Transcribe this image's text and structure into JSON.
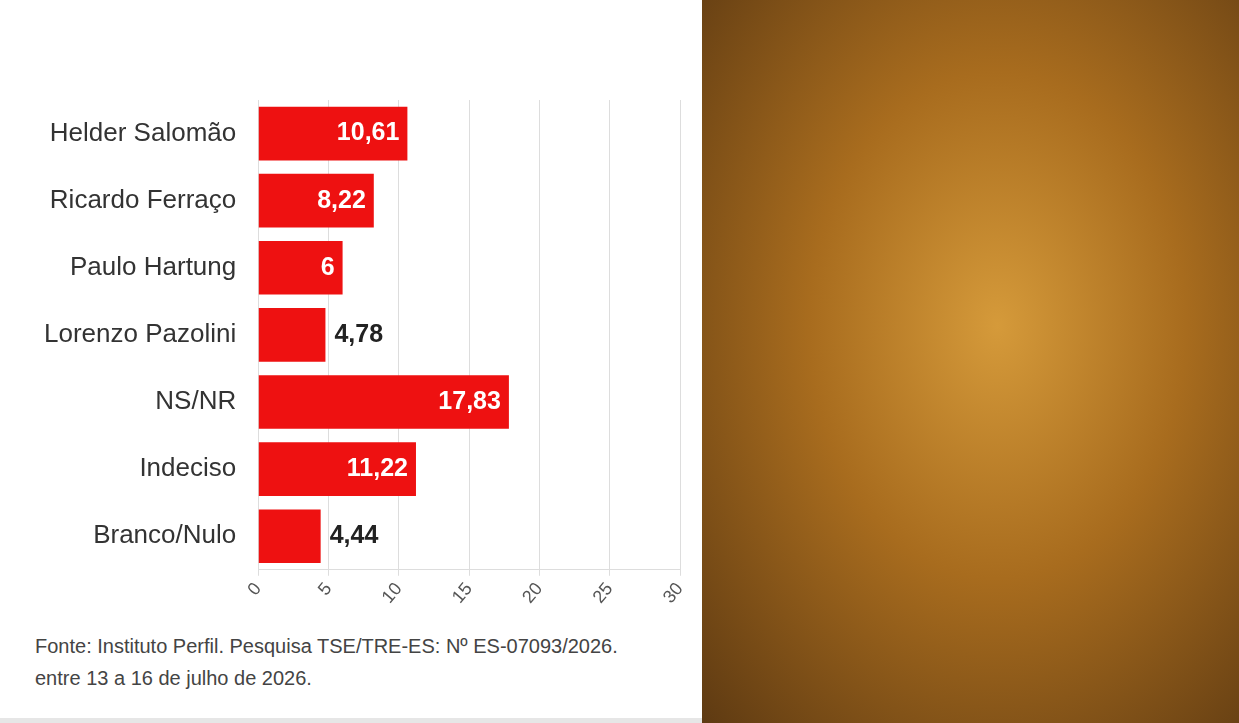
{
  "chart_data": {
    "type": "bar",
    "orientation": "horizontal",
    "categories": [
      "Helder Salomão",
      "Ricardo Ferraço",
      "Paulo Hartung",
      "Lorenzo Pazolini",
      "NS/NR",
      "Indeciso",
      "Branco/Nulo"
    ],
    "values": [
      10.61,
      8.22,
      6,
      4.78,
      17.83,
      11.22,
      4.44
    ],
    "value_labels": [
      "10,61",
      "8,22",
      "6",
      "4,78",
      "17,83",
      "11,22",
      "4,44"
    ],
    "color": "#ee1111",
    "xlim": [
      0,
      30
    ],
    "xticks": [
      0,
      5,
      10,
      15,
      20,
      25,
      30
    ],
    "grid": true,
    "data_labels": true,
    "annotations": [
      "Fonte: Instituto Perfil. Pesquisa TSE/TRE-ES: Nº ES-07093/2026.",
      "entre 13 a 16 de julho de 2026."
    ]
  }
}
